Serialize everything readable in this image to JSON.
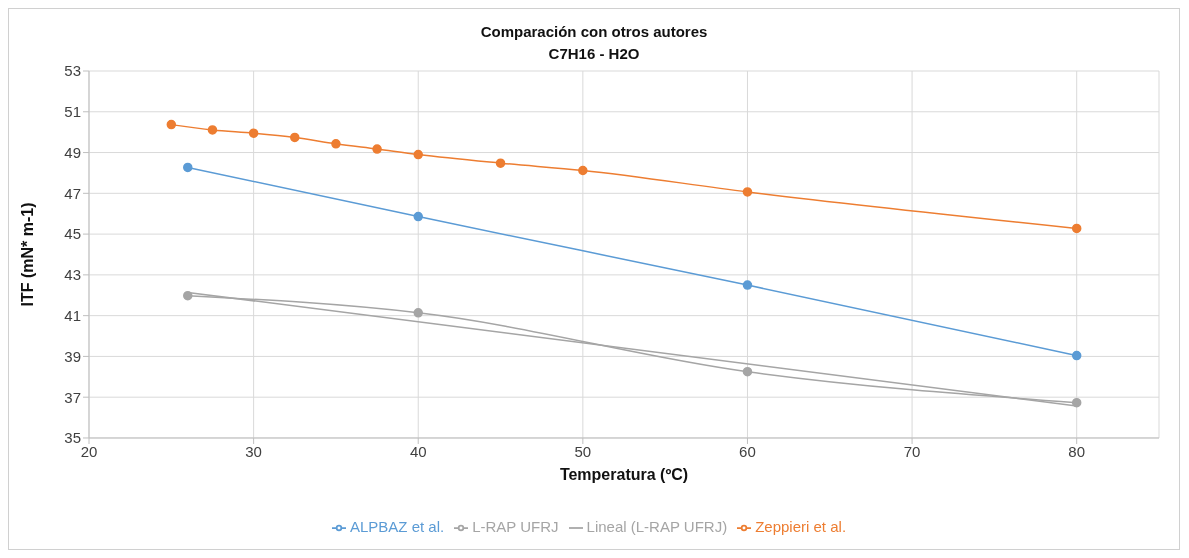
{
  "chart_data": {
    "type": "line",
    "title": "Comparación con otros autores",
    "subtitle": "C7H16 - H2O",
    "xlabel": "Temperatura (ºC)",
    "ylabel": "ITF (mN* m-1)",
    "xlim": [
      20,
      85
    ],
    "xticks": [
      20,
      30,
      40,
      50,
      60,
      70,
      80
    ],
    "ylim": [
      35,
      53
    ],
    "yticks": [
      35,
      37,
      39,
      41,
      43,
      45,
      47,
      49,
      51,
      53
    ],
    "grid": true,
    "legend": "bottom",
    "series": [
      {
        "name": "Zeppieri et al.",
        "color": "#ed7d31",
        "marker": "circle",
        "x": [
          25,
          27.5,
          30,
          32.5,
          35,
          37.5,
          40,
          45,
          50,
          60,
          80
        ],
        "values": [
          50.37,
          50.11,
          49.95,
          49.74,
          49.43,
          49.17,
          48.9,
          48.48,
          48.12,
          47.07,
          45.28
        ]
      },
      {
        "name": "L-RAP UFRJ",
        "color": "#a5a5a5",
        "marker": "circle",
        "x": [
          26,
          40,
          60,
          80
        ],
        "values": [
          41.98,
          41.14,
          38.25,
          36.73
        ]
      },
      {
        "name": "ALPBAZ et al.",
        "color": "#5b9bd5",
        "marker": "circle",
        "x": [
          26,
          40,
          60,
          80
        ],
        "values": [
          48.27,
          45.86,
          42.5,
          39.04
        ]
      },
      {
        "name": "Lineal (L-RAP UFRJ)",
        "color": "#a5a5a5",
        "marker": "none",
        "x": [
          26,
          80
        ],
        "values": [
          42.14,
          36.57
        ]
      }
    ]
  }
}
